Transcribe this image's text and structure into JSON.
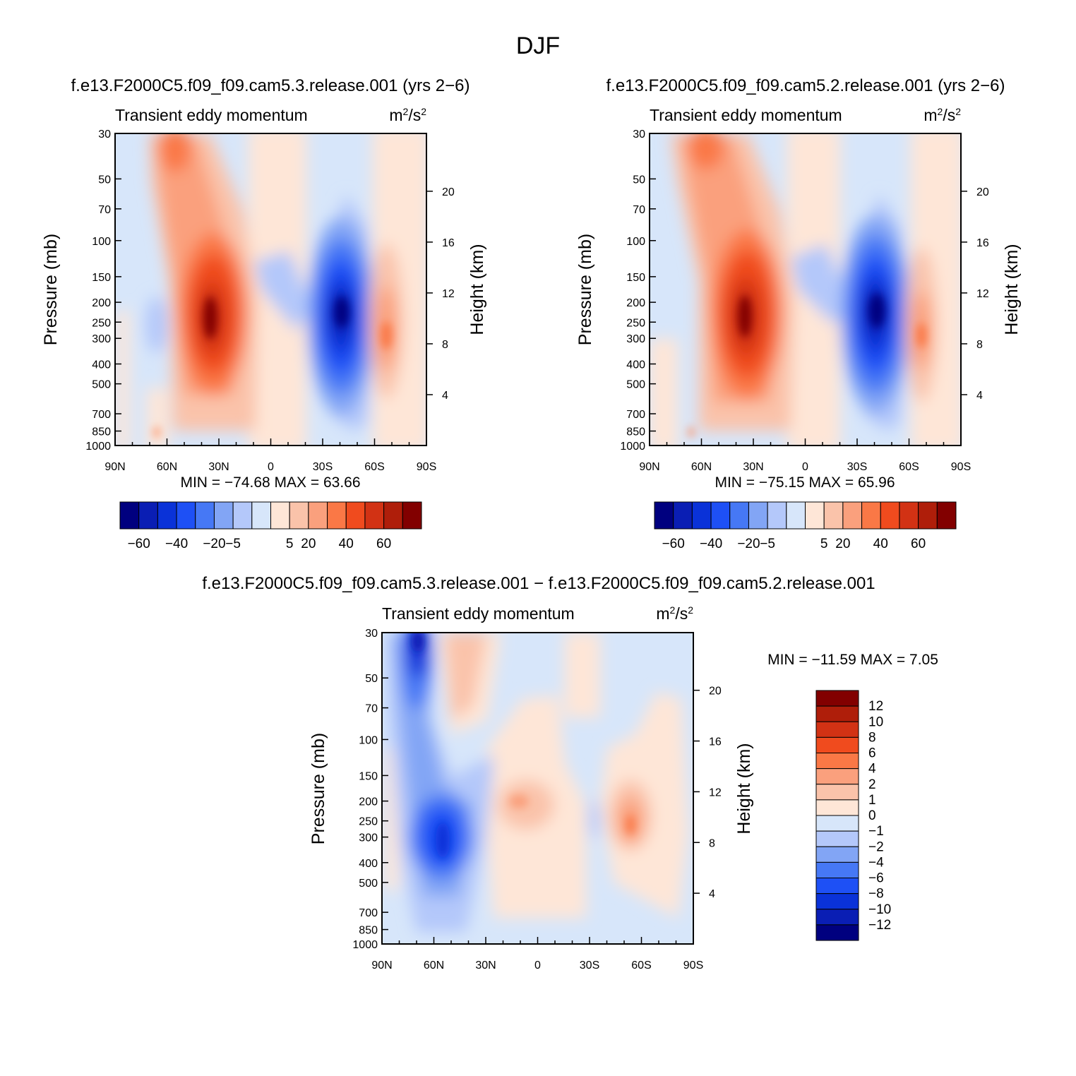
{
  "figure": {
    "title": "DJF"
  },
  "panels": [
    {
      "case_title": "f.e13.F2000C5.f09_f09.cam5.3.release.001  (yrs 2−6)",
      "variable": "Transient eddy momentum",
      "units_base": "m",
      "units_exp1": "2",
      "units_mid": "/s",
      "units_exp2": "2",
      "stats": "MIN  =  −74.68    MAX  =    63.66"
    },
    {
      "case_title": "f.e13.F2000C5.f09_f09.cam5.2.release.001  (yrs 2−6)",
      "variable": "Transient eddy momentum",
      "units_base": "m",
      "units_exp1": "2",
      "units_mid": "/s",
      "units_exp2": "2",
      "stats": "MIN  =  −75.15    MAX  =    65.96"
    },
    {
      "case_title": "f.e13.F2000C5.f09_f09.cam5.3.release.001  −  f.e13.F2000C5.f09_f09.cam5.2.release.001",
      "variable": "Transient eddy momentum",
      "units_base": "m",
      "units_exp1": "2",
      "units_mid": "/s",
      "units_exp2": "2",
      "stats": "MIN  =  −11.59    MAX  =     7.05"
    }
  ],
  "axes": {
    "ylabel_left": "Pressure (mb)",
    "ylabel_right": "Height (km)",
    "pressure_ticks": [
      "30",
      "50",
      "70",
      "100",
      "150",
      "200",
      "250",
      "300",
      "400",
      "500",
      "700",
      "850",
      "1000"
    ],
    "height_ticks": [
      "20",
      "16",
      "12",
      "8",
      "4"
    ],
    "lat_ticks": [
      "90N",
      "60N",
      "30N",
      "0",
      "30S",
      "60S",
      "90S"
    ]
  },
  "colorbars": {
    "main": {
      "tick_labels": [
        "−60",
        "−40",
        "−20",
        "−5",
        "5",
        "20",
        "40",
        "60"
      ]
    },
    "diff": {
      "tick_labels": [
        "12",
        "10",
        "8",
        "6",
        "4",
        "2",
        "1",
        "0",
        "−1",
        "−2",
        "−4",
        "−6",
        "−8",
        "−10",
        "−12"
      ]
    }
  },
  "colors": {
    "palette": [
      "#00007f",
      "#0a1eb4",
      "#0a32d8",
      "#1e50f5",
      "#4678f5",
      "#82a5f5",
      "#b4c8fa",
      "#d7e6fa",
      "#fee6d7",
      "#fac3aa",
      "#faa07d",
      "#fa7846",
      "#f04b1e",
      "#d23214",
      "#af1e0a",
      "#820000"
    ]
  },
  "chart_data": [
    {
      "type": "heatmap",
      "title": "f.e13.F2000C5.f09_f09.cam5.3.release.001  (yrs 2−6)",
      "variable": "Transient eddy momentum",
      "units": "m2/s2",
      "x_label": "",
      "x_ticks": [
        "90N",
        "60N",
        "30N",
        "0",
        "30S",
        "60S",
        "90S"
      ],
      "x_range": [
        "90N",
        "90S"
      ],
      "ylabel": "Pressure (mb)",
      "y_range_mb": [
        1000,
        30
      ],
      "y_scale": "log",
      "ylabel_right": "Height (km)",
      "contour_levels": [
        -60,
        -50,
        -40,
        -30,
        -20,
        -10,
        -5,
        0,
        5,
        10,
        20,
        30,
        40,
        50,
        60
      ],
      "min": -74.68,
      "max": 63.66,
      "features": [
        {
          "lat": 33,
          "p": 250,
          "value": 63.66
        },
        {
          "lat": -42,
          "p": 250,
          "value": -74.68
        },
        {
          "lat": -68,
          "p": 280,
          "value": 30
        },
        {
          "lat": 57,
          "p": 40,
          "value": 20
        },
        {
          "lat": 70,
          "p": 280,
          "value": -5
        }
      ]
    },
    {
      "type": "heatmap",
      "title": "f.e13.F2000C5.f09_f09.cam5.2.release.001  (yrs 2−6)",
      "variable": "Transient eddy momentum",
      "units": "m2/s2",
      "x_label": "",
      "x_ticks": [
        "90N",
        "60N",
        "30N",
        "0",
        "30S",
        "60S",
        "90S"
      ],
      "x_range": [
        "90N",
        "90S"
      ],
      "ylabel": "Pressure (mb)",
      "y_range_mb": [
        1000,
        30
      ],
      "y_scale": "log",
      "ylabel_right": "Height (km)",
      "contour_levels": [
        -60,
        -50,
        -40,
        -30,
        -20,
        -10,
        -5,
        0,
        5,
        10,
        20,
        30,
        40,
        50,
        60
      ],
      "min": -75.15,
      "max": 65.96,
      "features": [
        {
          "lat": 34,
          "p": 240,
          "value": 65.96
        },
        {
          "lat": -42,
          "p": 230,
          "value": -75.15
        },
        {
          "lat": -68,
          "p": 280,
          "value": 30
        },
        {
          "lat": 60,
          "p": 40,
          "value": 25
        }
      ]
    },
    {
      "type": "heatmap",
      "title": "f.e13.F2000C5.f09_f09.cam5.3.release.001  −  f.e13.F2000C5.f09_f09.cam5.2.release.001",
      "variable": "Transient eddy momentum",
      "units": "m2/s2",
      "x_label": "",
      "x_ticks": [
        "90N",
        "60N",
        "30N",
        "0",
        "30S",
        "60S",
        "90S"
      ],
      "x_range": [
        "90N",
        "90S"
      ],
      "ylabel": "Pressure (mb)",
      "y_range_mb": [
        1000,
        30
      ],
      "y_scale": "log",
      "ylabel_right": "Height (km)",
      "contour_levels": [
        -12,
        -10,
        -8,
        -6,
        -4,
        -2,
        -1,
        0,
        1,
        2,
        4,
        6,
        8,
        10,
        12
      ],
      "min": -11.59,
      "max": 7.05,
      "features": [
        {
          "lat": 70,
          "p": 35,
          "value": -11.59
        },
        {
          "lat": 58,
          "p": 300,
          "value": -10
        },
        {
          "lat": 52,
          "p": 45,
          "value": 4
        },
        {
          "lat": 10,
          "p": 200,
          "value": 3
        },
        {
          "lat": -55,
          "p": 280,
          "value": 7.05
        }
      ]
    }
  ]
}
